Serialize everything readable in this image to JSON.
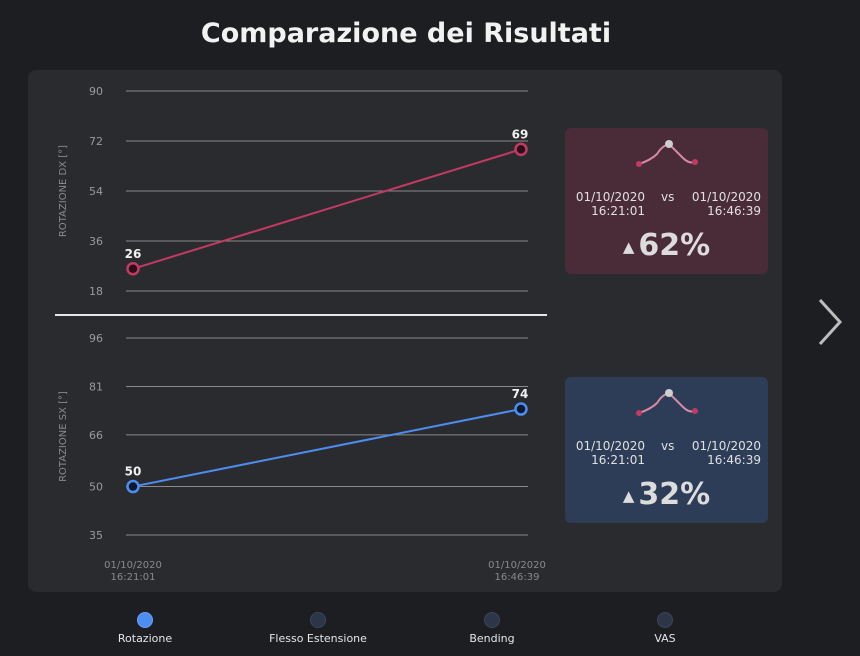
{
  "title": "Comparazione dei Risultati",
  "chart_data": [
    {
      "type": "line",
      "ylabel": "ROTAZIONE DX [°]",
      "yticks": [
        18,
        36,
        54,
        72,
        90
      ],
      "ylim": [
        18,
        90
      ],
      "x": [
        "01/10/2020 16:21:01",
        "01/10/2020 16:46:39"
      ],
      "series": [
        {
          "values": [
            26,
            69
          ],
          "color": "#c23a63"
        }
      ],
      "grid": true
    },
    {
      "type": "line",
      "ylabel": "ROTAZIONE SX [°]",
      "yticks": [
        35,
        50,
        66,
        81,
        96
      ],
      "ylim": [
        35,
        96
      ],
      "x": [
        "01/10/2020 16:21:01",
        "01/10/2020 16:46:39"
      ],
      "xtick_labels": [
        [
          "01/10/2020",
          "16:21:01"
        ],
        [
          "01/10/2020",
          "16:46:39"
        ]
      ],
      "series": [
        {
          "values": [
            50,
            74
          ],
          "color": "#4d8df0"
        }
      ],
      "grid": true
    }
  ],
  "cards": {
    "dx": {
      "date1": "01/10/2020",
      "time1": "16:21:01",
      "vs": "vs",
      "date2": "01/10/2020",
      "time2": "16:46:39",
      "percent": "62%",
      "trend": "up",
      "color": "#4a2b38"
    },
    "sx": {
      "date1": "01/10/2020",
      "time1": "16:21:01",
      "vs": "vs",
      "date2": "01/10/2020",
      "time2": "16:46:39",
      "percent": "32%",
      "trend": "up",
      "color": "#2d3d57"
    }
  },
  "icons": {
    "arrow": "triangle-up-icon",
    "spark": "sparkline-icon",
    "next": "chevron-right-icon"
  },
  "nav": [
    {
      "label": "Rotazione",
      "active": true
    },
    {
      "label": "Flesso Estensione",
      "active": false
    },
    {
      "label": "Bending",
      "active": false
    },
    {
      "label": "VAS",
      "active": false
    }
  ]
}
